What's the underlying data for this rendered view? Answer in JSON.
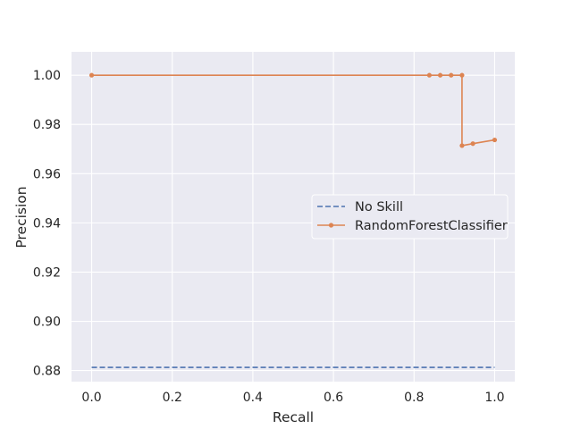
{
  "chart_data": {
    "type": "line",
    "title": "",
    "xlabel": "Recall",
    "ylabel": "Precision",
    "xlim": [
      -0.05,
      1.05
    ],
    "ylim": [
      0.8755,
      1.0095
    ],
    "x_ticks": [
      0.0,
      0.2,
      0.4,
      0.6,
      0.8,
      1.0
    ],
    "x_tick_labels": [
      "0.0",
      "0.2",
      "0.4",
      "0.6",
      "0.8",
      "1.0"
    ],
    "y_ticks": [
      0.88,
      0.9,
      0.92,
      0.94,
      0.96,
      0.98,
      1.0
    ],
    "y_tick_labels": [
      "0.88",
      "0.90",
      "0.92",
      "0.94",
      "0.96",
      "0.98",
      "1.00"
    ],
    "grid": true,
    "legend_position": "center-right",
    "colors": {
      "plot_background": "#eaeaf2",
      "grid": "#ffffff",
      "no_skill": "#4c72b0",
      "random_forest": "#dd8452"
    },
    "series": [
      {
        "name": "No Skill",
        "style": "dashed",
        "marker": "none",
        "color": "#4c72b0",
        "x": [
          0.0,
          1.0
        ],
        "y": [
          0.8813,
          0.8813
        ]
      },
      {
        "name": "RandomForestClassifier",
        "style": "solid",
        "marker": "circle",
        "color": "#dd8452",
        "x": [
          0.0,
          0.838,
          0.865,
          0.892,
          0.919,
          0.919,
          0.946,
          1.0
        ],
        "y": [
          1.0,
          1.0,
          1.0,
          1.0,
          1.0,
          0.9714,
          0.9722,
          0.9737
        ]
      }
    ]
  }
}
